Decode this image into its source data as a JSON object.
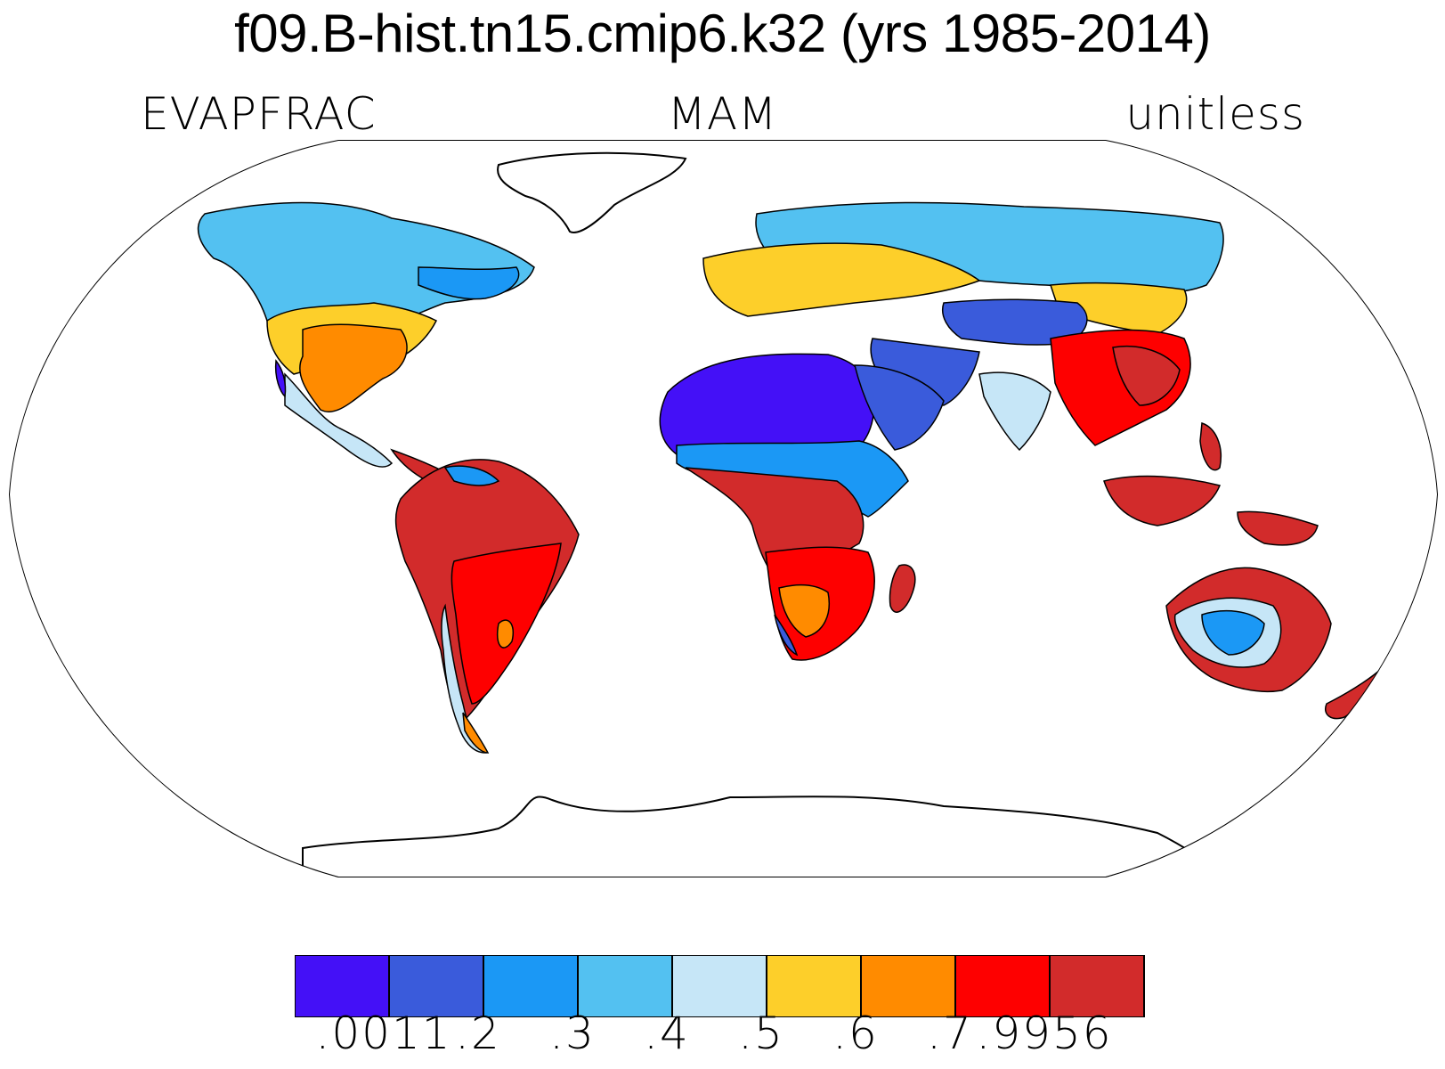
{
  "title": "f09.B-hist.tn15.cmip6.k32 (yrs 1985-2014)",
  "left_string": "EVAPFRAC",
  "center_string": "MAM",
  "right_string": "unitless",
  "colorbar": {
    "colors": [
      "#4410f7",
      "#3a5bdb",
      "#1b98f5",
      "#53c1f1",
      "#c6e6f7",
      "#fdcf2a",
      "#ff8b00",
      "#fe0000",
      "#d22b2b"
    ],
    "labels": [
      ".0011",
      ".2",
      ".3",
      ".4",
      ".5",
      ".6",
      ".7",
      ".9956"
    ]
  },
  "map": {
    "projection": "Robinson",
    "regions": [
      {
        "name": "sahara",
        "level": 0
      },
      {
        "name": "arabia",
        "level": 1
      },
      {
        "name": "sahel",
        "level": 2
      },
      {
        "name": "central-africa",
        "level": 8
      },
      {
        "name": "southern-africa",
        "level": 7
      },
      {
        "name": "amazon",
        "level": 8
      },
      {
        "name": "eastern-south-america",
        "level": 7
      },
      {
        "name": "patagonia",
        "level": 4
      },
      {
        "name": "north-america-south",
        "level": 6
      },
      {
        "name": "north-america-north",
        "level": 3
      },
      {
        "name": "europe",
        "level": 5
      },
      {
        "name": "siberia",
        "level": 3
      },
      {
        "name": "central-asia",
        "level": 1
      },
      {
        "name": "south-east-asia",
        "level": 8
      },
      {
        "name": "australia-interior",
        "level": 2
      },
      {
        "name": "australia-coast",
        "level": 8
      }
    ]
  }
}
